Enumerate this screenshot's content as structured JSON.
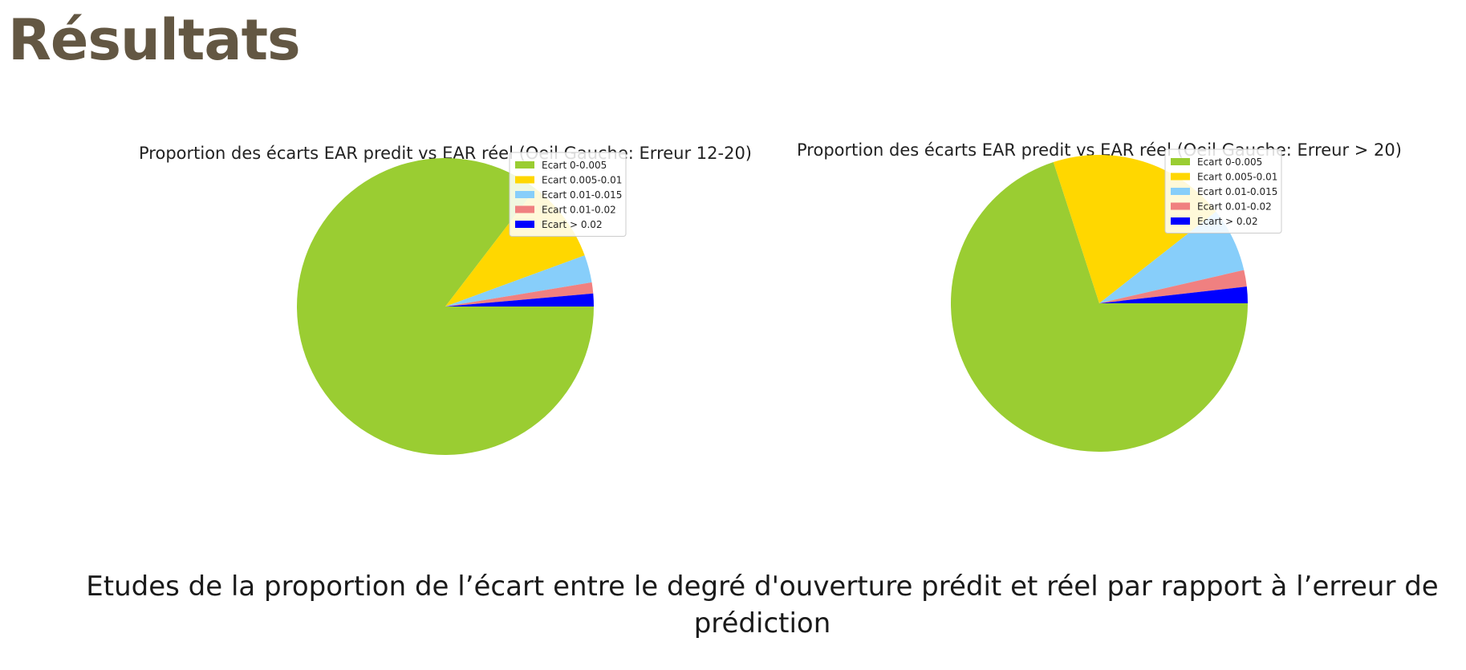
{
  "slide": {
    "title": "Résultats",
    "caption": "Etudes de la proportion de l’écart entre le degré d'ouverture prédit et réel par rapport à l’erreur de prédiction"
  },
  "chart_data": [
    {
      "type": "pie",
      "title": "Proportion des écarts EAR predit vs EAR réel (Oeil Gauche: Erreur 12-20)",
      "categories": [
        "Ecart 0-0.005",
        "Ecart 0.005-0.01",
        "Ecart 0.01-0.015",
        "Ecart 0.01-0.02",
        "Ecart > 0.02"
      ],
      "values": [
        85.4,
        9.0,
        3.0,
        1.2,
        1.4
      ],
      "colors": [
        "#9acd32",
        "#ffd700",
        "#87cefa",
        "#f08080",
        "#0000ff"
      ],
      "start_angle_deg": 0,
      "direction": "clockwise",
      "legend_position": "top-right"
    },
    {
      "type": "pie",
      "title": "Proportion des écarts EAR predit vs EAR réel (Oeil Gauche: Erreur > 20)",
      "categories": [
        "Ecart 0-0.005",
        "Ecart 0.005-0.01",
        "Ecart 0.01-0.015",
        "Ecart 0.01-0.02",
        "Ecart > 0.02"
      ],
      "values": [
        70.0,
        19.4,
        7.0,
        1.8,
        1.8
      ],
      "colors": [
        "#9acd32",
        "#ffd700",
        "#87cefa",
        "#f08080",
        "#0000ff"
      ],
      "start_angle_deg": 0,
      "direction": "clockwise",
      "legend_position": "top-right"
    }
  ]
}
